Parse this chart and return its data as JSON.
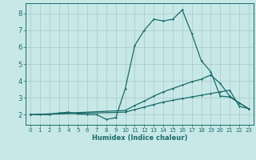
{
  "xlabel": "Humidex (Indice chaleur)",
  "bg_color": "#c8e8e8",
  "grid_color": "#a8c8c8",
  "line_color": "#1a6b6b",
  "xlim": [
    -0.5,
    23.5
  ],
  "ylim": [
    1.4,
    8.6
  ],
  "yticks": [
    2,
    3,
    4,
    5,
    6,
    7,
    8
  ],
  "xticks": [
    0,
    1,
    2,
    3,
    4,
    5,
    6,
    7,
    8,
    9,
    10,
    11,
    12,
    13,
    14,
    15,
    16,
    17,
    18,
    19,
    20,
    21,
    22,
    23
  ],
  "line1_x": [
    0,
    1,
    2,
    3,
    4,
    5,
    6,
    7,
    8,
    9,
    10,
    11,
    12,
    13,
    14,
    15,
    16,
    17,
    18,
    19,
    20,
    21,
    22,
    23
  ],
  "line1_y": [
    2.0,
    2.0,
    2.0,
    2.1,
    2.15,
    2.05,
    2.0,
    2.0,
    1.72,
    1.82,
    3.55,
    6.1,
    7.0,
    7.65,
    7.55,
    7.65,
    8.2,
    6.8,
    5.2,
    4.55,
    3.1,
    3.05,
    2.7,
    2.35
  ],
  "line2_x": [
    0,
    10,
    11,
    12,
    13,
    14,
    15,
    16,
    17,
    18,
    19,
    20,
    21,
    22,
    23
  ],
  "line2_y": [
    2.0,
    2.25,
    2.55,
    2.8,
    3.1,
    3.35,
    3.55,
    3.75,
    3.95,
    4.1,
    4.35,
    3.85,
    3.1,
    2.7,
    2.35
  ],
  "line3_x": [
    0,
    10,
    11,
    12,
    13,
    14,
    15,
    16,
    17,
    18,
    19,
    20,
    21,
    22,
    23
  ],
  "line3_y": [
    2.0,
    2.15,
    2.3,
    2.45,
    2.6,
    2.75,
    2.85,
    2.95,
    3.05,
    3.15,
    3.25,
    3.35,
    3.45,
    2.5,
    2.35
  ],
  "markersize": 2.0,
  "linewidth": 0.9
}
